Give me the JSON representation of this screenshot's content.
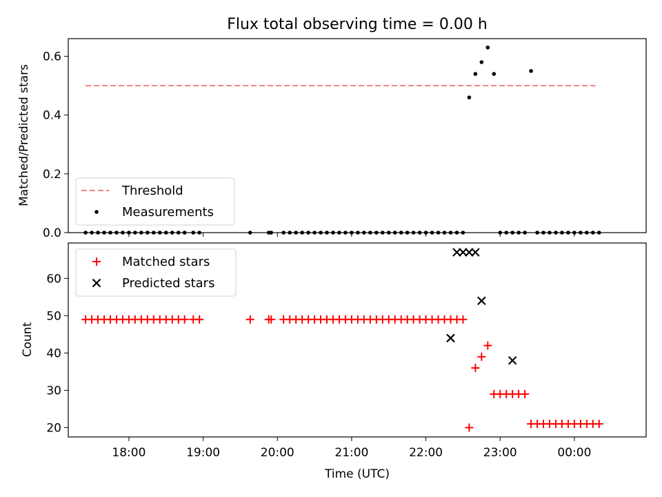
{
  "chart_data": [
    {
      "type": "scatter",
      "title": "Flux total observing time = 0.00 h",
      "ylabel": "Matched/Predicted stars",
      "xlabel": "",
      "ylim": [
        0.0,
        0.66
      ],
      "xlim": [
        "17:11",
        "00:58"
      ],
      "yticks": [
        "0.0",
        "0.2",
        "0.4",
        "0.6"
      ],
      "xticks": [
        "18:00",
        "19:00",
        "20:00",
        "21:00",
        "22:00",
        "23:00",
        "00:00"
      ],
      "legend_position": "lower-left",
      "grid": false,
      "threshold": {
        "name": "Threshold",
        "value": 0.5,
        "x_start": "17:25",
        "x_end": "00:17",
        "color": "#f08080"
      },
      "series": [
        {
          "name": "Measurements",
          "marker": "dot",
          "color": "#000000",
          "x": [
            "17:25",
            "17:30",
            "17:35",
            "17:40",
            "17:45",
            "17:50",
            "17:55",
            "18:00",
            "18:05",
            "18:10",
            "18:15",
            "18:20",
            "18:25",
            "18:30",
            "18:35",
            "18:40",
            "18:45",
            "18:52",
            "18:57",
            "19:38",
            "19:53",
            "19:55",
            "20:05",
            "20:10",
            "20:15",
            "20:20",
            "20:25",
            "20:30",
            "20:35",
            "20:40",
            "20:45",
            "20:50",
            "20:55",
            "21:00",
            "21:05",
            "21:10",
            "21:15",
            "21:20",
            "21:25",
            "21:30",
            "21:35",
            "21:40",
            "21:45",
            "21:50",
            "21:55",
            "22:00",
            "22:05",
            "22:10",
            "22:15",
            "22:20",
            "22:25",
            "22:30",
            "22:35",
            "22:40",
            "22:45",
            "22:50",
            "22:55",
            "23:00",
            "23:05",
            "23:10",
            "23:15",
            "23:20",
            "23:25",
            "23:30",
            "23:35",
            "23:40",
            "23:45",
            "23:50",
            "23:55",
            "00:00",
            "00:05",
            "00:10",
            "00:15",
            "00:20"
          ],
          "y": [
            0,
            0,
            0,
            0,
            0,
            0,
            0,
            0,
            0,
            0,
            0,
            0,
            0,
            0,
            0,
            0,
            0,
            0,
            0,
            0,
            0,
            0,
            0,
            0,
            0,
            0,
            0,
            0,
            0,
            0,
            0,
            0,
            0,
            0,
            0,
            0,
            0,
            0,
            0,
            0,
            0,
            0,
            0,
            0,
            0,
            0,
            0,
            0,
            0,
            0,
            0,
            0,
            0.46,
            0.54,
            0.58,
            0.63,
            0.54,
            0,
            0,
            0,
            0,
            0,
            0.55,
            0,
            0,
            0,
            0,
            0,
            0,
            0,
            0,
            0,
            0,
            0
          ]
        }
      ]
    },
    {
      "type": "scatter",
      "title": "",
      "ylabel": "Count",
      "xlabel": "Time (UTC)",
      "ylim": [
        17.5,
        69.5
      ],
      "xlim": [
        "17:11",
        "00:58"
      ],
      "yticks": [
        "20",
        "30",
        "40",
        "50",
        "60"
      ],
      "xticks": [
        "18:00",
        "19:00",
        "20:00",
        "21:00",
        "22:00",
        "23:00",
        "00:00"
      ],
      "legend_position": "upper-left",
      "grid": false,
      "series": [
        {
          "name": "Matched stars",
          "marker": "plus",
          "color": "#ff0000",
          "x": [
            "17:25",
            "17:30",
            "17:35",
            "17:40",
            "17:45",
            "17:50",
            "17:55",
            "18:00",
            "18:05",
            "18:10",
            "18:15",
            "18:20",
            "18:25",
            "18:30",
            "18:35",
            "18:40",
            "18:45",
            "18:52",
            "18:57",
            "19:38",
            "19:53",
            "19:55",
            "20:05",
            "20:10",
            "20:15",
            "20:20",
            "20:25",
            "20:30",
            "20:35",
            "20:40",
            "20:45",
            "20:50",
            "20:55",
            "21:00",
            "21:05",
            "21:10",
            "21:15",
            "21:20",
            "21:25",
            "21:30",
            "21:35",
            "21:40",
            "21:45",
            "21:50",
            "21:55",
            "22:00",
            "22:05",
            "22:10",
            "22:15",
            "22:20",
            "22:25",
            "22:30",
            "22:35",
            "22:40",
            "22:45",
            "22:50",
            "22:55",
            "23:00",
            "23:05",
            "23:10",
            "23:15",
            "23:20",
            "23:25",
            "23:30",
            "23:35",
            "23:40",
            "23:45",
            "23:50",
            "23:55",
            "00:00",
            "00:05",
            "00:10",
            "00:15",
            "00:20"
          ],
          "y": [
            49,
            49,
            49,
            49,
            49,
            49,
            49,
            49,
            49,
            49,
            49,
            49,
            49,
            49,
            49,
            49,
            49,
            49,
            49,
            49,
            49,
            49,
            49,
            49,
            49,
            49,
            49,
            49,
            49,
            49,
            49,
            49,
            49,
            49,
            49,
            49,
            49,
            49,
            49,
            49,
            49,
            49,
            49,
            49,
            49,
            49,
            49,
            49,
            49,
            49,
            49,
            49,
            20,
            36,
            39,
            42,
            29,
            29,
            29,
            29,
            29,
            29,
            21,
            21,
            21,
            21,
            21,
            21,
            21,
            21,
            21,
            21,
            21,
            21
          ]
        },
        {
          "name": "Predicted stars",
          "marker": "x",
          "color": "#000000",
          "x": [
            "22:20",
            "22:25",
            "22:30",
            "22:35",
            "22:40",
            "22:45",
            "23:10"
          ],
          "y": [
            44,
            67,
            67,
            67,
            67,
            54,
            38
          ]
        }
      ]
    }
  ]
}
